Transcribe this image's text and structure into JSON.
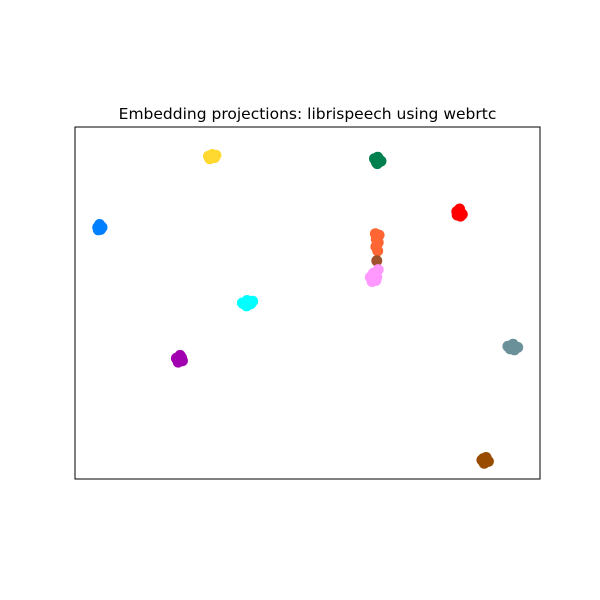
{
  "chart_data": {
    "type": "scatter",
    "title": "Embedding projections: librispeech using webrtc",
    "xlabel": "",
    "ylabel": "",
    "xlim": [
      0,
      100
    ],
    "ylim": [
      0,
      100
    ],
    "axis_ticks": false,
    "grid": false,
    "series": [
      {
        "color": "#ffd92f",
        "points": [
          [
            28.7,
            91.7
          ],
          [
            29.5,
            92.2
          ],
          [
            30.3,
            92.0
          ],
          [
            29.0,
            91.0
          ],
          [
            30.0,
            91.3
          ],
          [
            29.6,
            91.6
          ]
        ]
      },
      {
        "color": "#007f4f",
        "points": [
          [
            64.4,
            91.0
          ],
          [
            65.1,
            91.4
          ],
          [
            65.8,
            90.3
          ],
          [
            64.8,
            90.0
          ],
          [
            65.4,
            90.7
          ],
          [
            65.0,
            89.6
          ]
        ]
      },
      {
        "color": "#ff0000",
        "points": [
          [
            82.1,
            76.0
          ],
          [
            82.7,
            76.7
          ],
          [
            83.3,
            75.2
          ],
          [
            82.2,
            75.0
          ],
          [
            82.9,
            74.7
          ],
          [
            82.6,
            75.6
          ]
        ]
      },
      {
        "color": "#0080ff",
        "points": [
          [
            4.9,
            71.5
          ],
          [
            5.3,
            72.3
          ],
          [
            5.8,
            71.5
          ],
          [
            5.0,
            70.8
          ],
          [
            5.5,
            70.9
          ],
          [
            5.3,
            71.7
          ]
        ]
      },
      {
        "color": "#ff6633",
        "points": [
          [
            64.6,
            69.7
          ],
          [
            65.4,
            69.3
          ],
          [
            64.8,
            68.1
          ],
          [
            65.2,
            67.2
          ],
          [
            64.7,
            66.0
          ],
          [
            65.1,
            64.8
          ],
          [
            65.0,
            66.8
          ]
        ]
      },
      {
        "color": "#a0522d",
        "points": [
          [
            64.9,
            62.0
          ]
        ]
      },
      {
        "color": "#ff99ff",
        "points": [
          [
            63.5,
            57.3
          ],
          [
            64.2,
            58.5
          ],
          [
            64.9,
            57.4
          ],
          [
            64.7,
            56.4
          ],
          [
            63.9,
            56.1
          ],
          [
            65.2,
            59.5
          ]
        ]
      },
      {
        "color": "#00ffff",
        "points": [
          [
            36.0,
            50.0
          ],
          [
            37.0,
            50.7
          ],
          [
            38.2,
            50.5
          ],
          [
            36.9,
            49.2
          ],
          [
            37.8,
            49.8
          ],
          [
            36.5,
            49.6
          ]
        ]
      },
      {
        "color": "#a000b0",
        "points": [
          [
            21.8,
            34.3
          ],
          [
            22.6,
            35.1
          ],
          [
            23.1,
            33.6
          ],
          [
            22.2,
            33.2
          ],
          [
            22.9,
            34.5
          ],
          [
            22.5,
            33.9
          ]
        ]
      },
      {
        "color": "#6a909a",
        "points": [
          [
            93.1,
            37.7
          ],
          [
            94.2,
            38.3
          ],
          [
            95.2,
            37.4
          ],
          [
            94.5,
            36.7
          ],
          [
            93.6,
            37.0
          ],
          [
            94.4,
            37.6
          ]
        ]
      },
      {
        "color": "#994c00",
        "points": [
          [
            87.5,
            5.4
          ],
          [
            88.4,
            6.1
          ],
          [
            88.9,
            5.0
          ],
          [
            88.0,
            4.5
          ],
          [
            87.8,
            5.8
          ],
          [
            88.5,
            5.4
          ]
        ]
      }
    ]
  }
}
